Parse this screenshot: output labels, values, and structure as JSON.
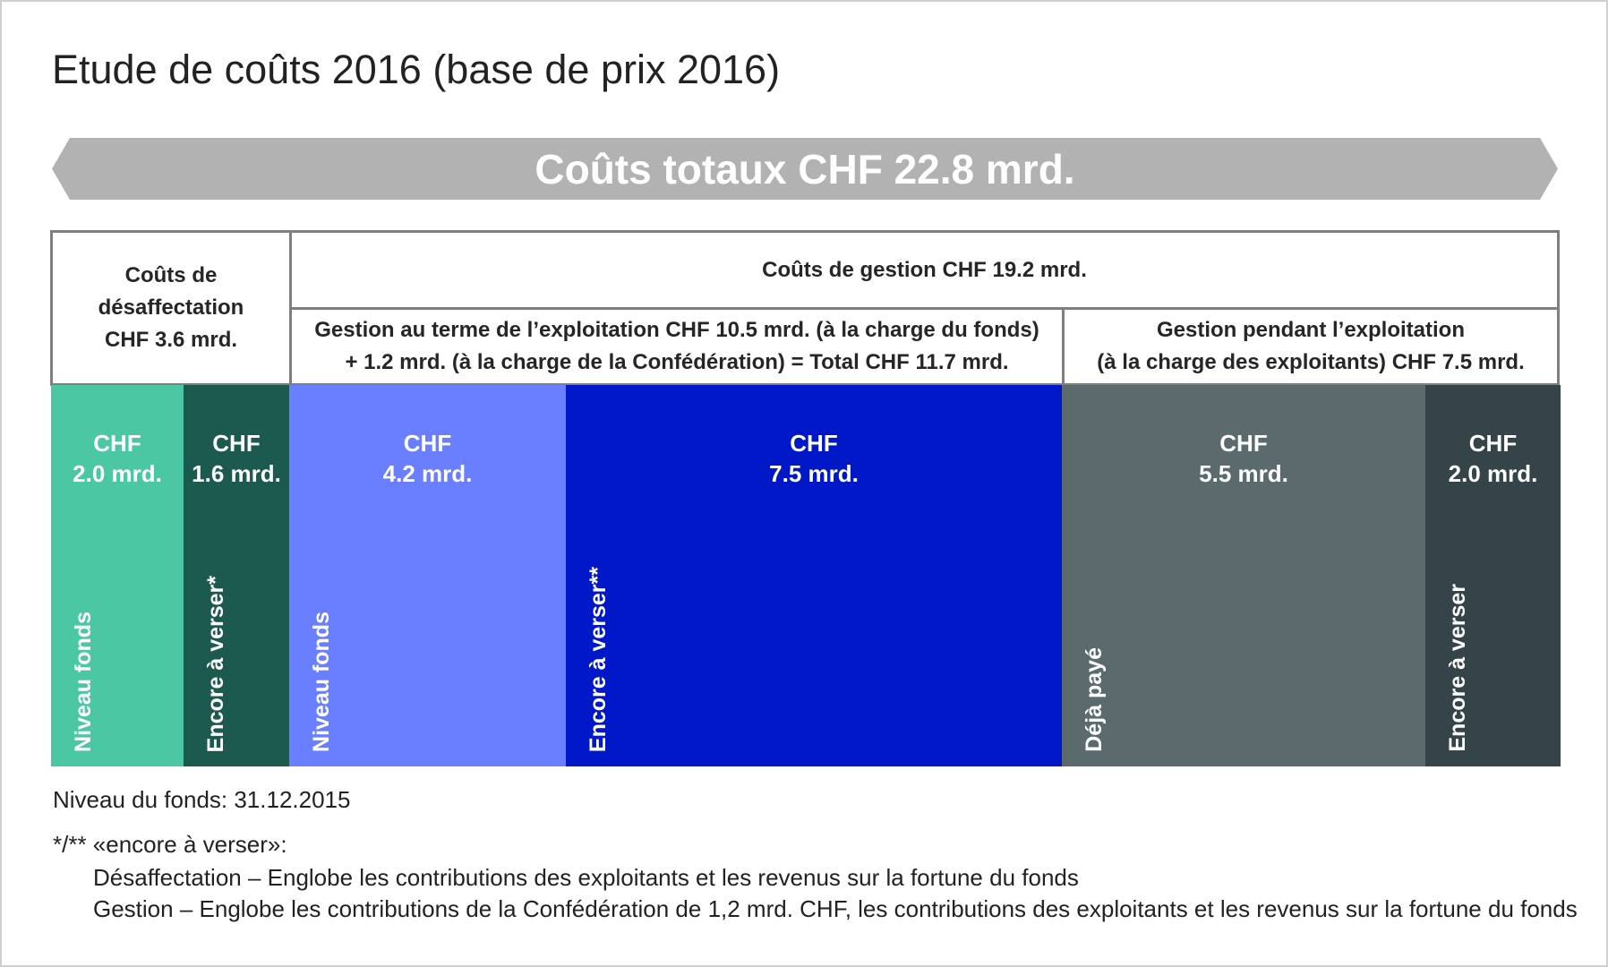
{
  "title": "Etude de coûts 2016 (base de prix 2016)",
  "chart_data": {
    "type": "bar",
    "title": "Etude de coûts 2016 (base de prix 2016)",
    "total_label": "Coûts totaux CHF 22.8 mrd.",
    "total": 22.8,
    "unit": "mrd. CHF",
    "groups": [
      {
        "label": "Coûts de désaffectation\nCHF 3.6 mrd.",
        "value": 3.6
      },
      {
        "label": "Coûts de gestion CHF 19.2 mrd.",
        "value": 19.2
      },
      {
        "label": "Gestion au terme de l’exploitation CHF 10.5 mrd. (à la charge du fonds)\n+ 1.2 mrd. (à la charge de la Confédération) = Total CHF 11.7 mrd.",
        "value": 11.7
      },
      {
        "label": "Gestion pendant l’exploitation\n(à la charge des exploitants) CHF 7.5 mrd.",
        "value": 7.5
      }
    ],
    "segments": [
      {
        "value": 2.0,
        "value_label": "CHF\n2.0 mrd.",
        "category": "Niveau fonds",
        "color": "#4cc7a4"
      },
      {
        "value": 1.6,
        "value_label": "CHF\n1.6 mrd.",
        "category": "Encore à verser*",
        "color": "#1c5a4f"
      },
      {
        "value": 4.2,
        "value_label": "CHF\n4.2 mrd.",
        "category": "Niveau fonds",
        "color": "#6a7fff"
      },
      {
        "value": 7.5,
        "value_label": "CHF\n7.5 mrd.",
        "category": "Encore à verser**",
        "color": "#0018c8"
      },
      {
        "value": 5.5,
        "value_label": "CHF\n5.5 mrd.",
        "category": "Déjà payé",
        "color": "#5b6b6d"
      },
      {
        "value": 2.0,
        "value_label": "CHF\n2.0 mrd.",
        "category": "Encore à verser",
        "color": "#344448"
      }
    ]
  },
  "notes": {
    "fund_date": "Niveau du fonds: 31.12.2015",
    "footnote_head": "*/** «encore à verser»:",
    "footnote_1": "Désaffectation – Englobe les contributions des exploitants et les revenus sur la fortune du fonds",
    "footnote_2": "Gestion – Englobe les contributions de la Confédération de 1,2 mrd. CHF, les contributions des exploitants et les revenus sur la fortune du fonds"
  },
  "colors": {
    "banner": "#b2b2b2",
    "border": "#7f7f7f"
  }
}
